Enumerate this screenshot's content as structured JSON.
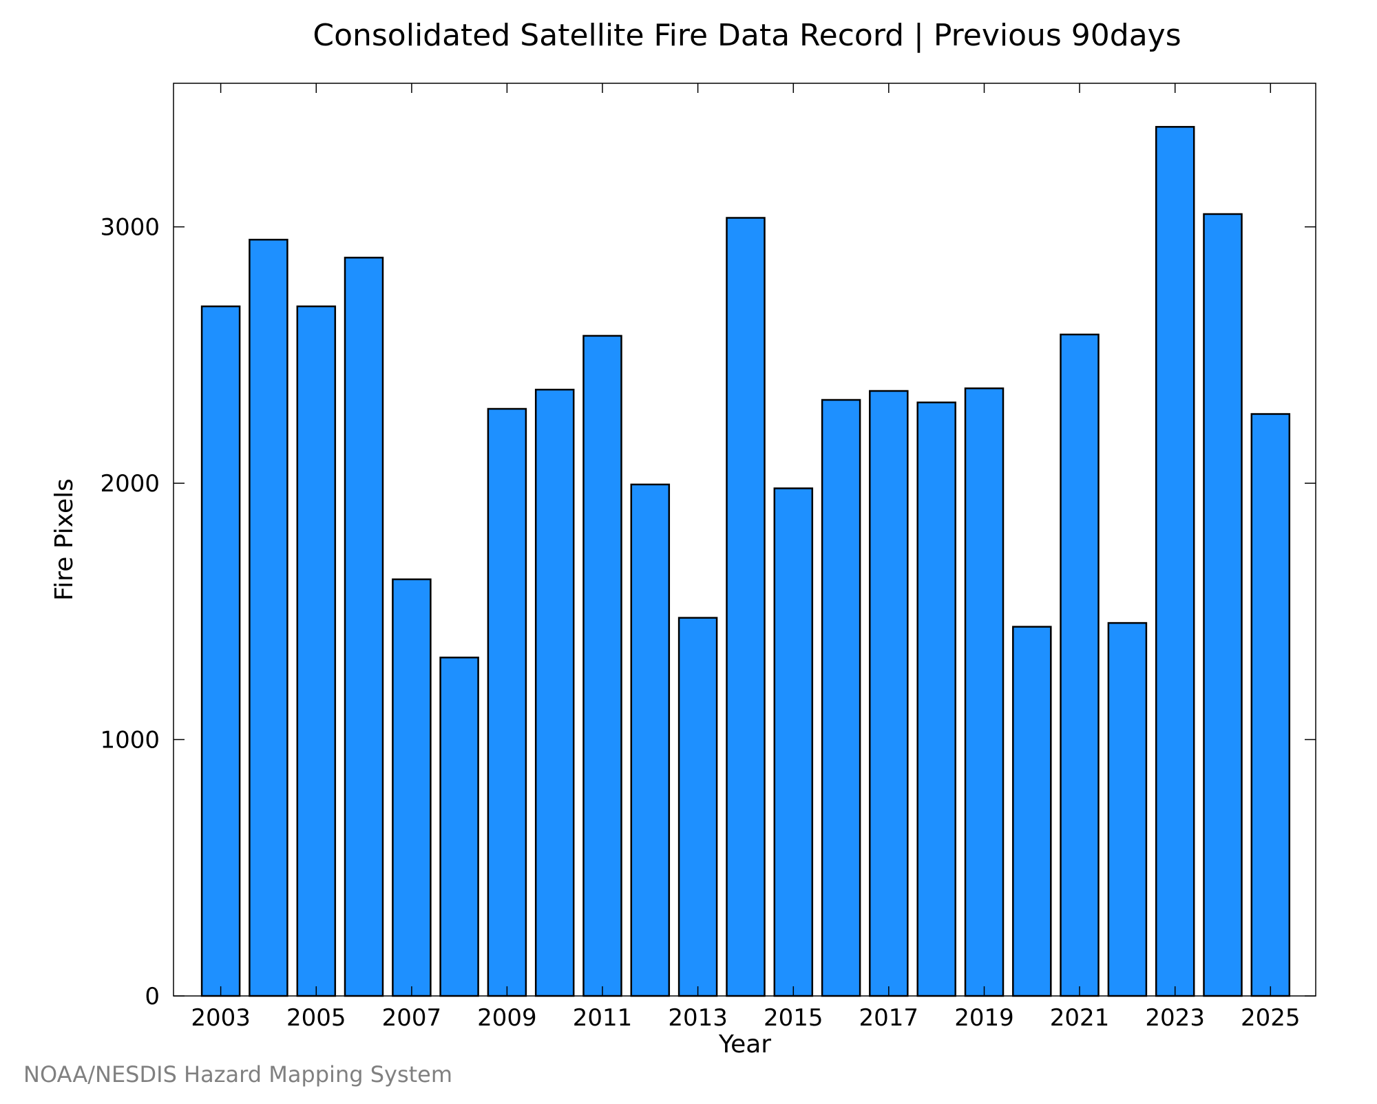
{
  "chart_data": {
    "type": "bar",
    "title": "Consolidated Satellite Fire Data Record | Previous 90days",
    "xlabel": "Year",
    "ylabel": "Fire Pixels",
    "categories": [
      "2003",
      "2004",
      "2005",
      "2006",
      "2007",
      "2008",
      "2009",
      "2010",
      "2011",
      "2012",
      "2013",
      "2014",
      "2015",
      "2016",
      "2017",
      "2018",
      "2019",
      "2020",
      "2021",
      "2022",
      "2023",
      "2024",
      "2025"
    ],
    "values": [
      2690,
      2950,
      2690,
      2880,
      1625,
      1320,
      2290,
      2365,
      2575,
      1995,
      1475,
      3035,
      1980,
      2325,
      2360,
      2315,
      2370,
      1440,
      2580,
      1455,
      3390,
      3050,
      2270
    ],
    "x_tick_labels": [
      "2003",
      "2005",
      "2007",
      "2009",
      "2011",
      "2013",
      "2015",
      "2017",
      "2019",
      "2021",
      "2023",
      "2025"
    ],
    "y_ticks": [
      0,
      1000,
      2000,
      3000
    ],
    "y_tick_labels": [
      "0",
      "1000",
      "2000",
      "3000"
    ],
    "ylim": [
      0,
      3560
    ],
    "grid": false,
    "legend": "none",
    "bar_color": "#1E90FF",
    "bar_edge_color": "#000000"
  },
  "footer": {
    "credit": "NOAA/NESDIS Hazard Mapping System",
    "credit_color": "#808080"
  }
}
